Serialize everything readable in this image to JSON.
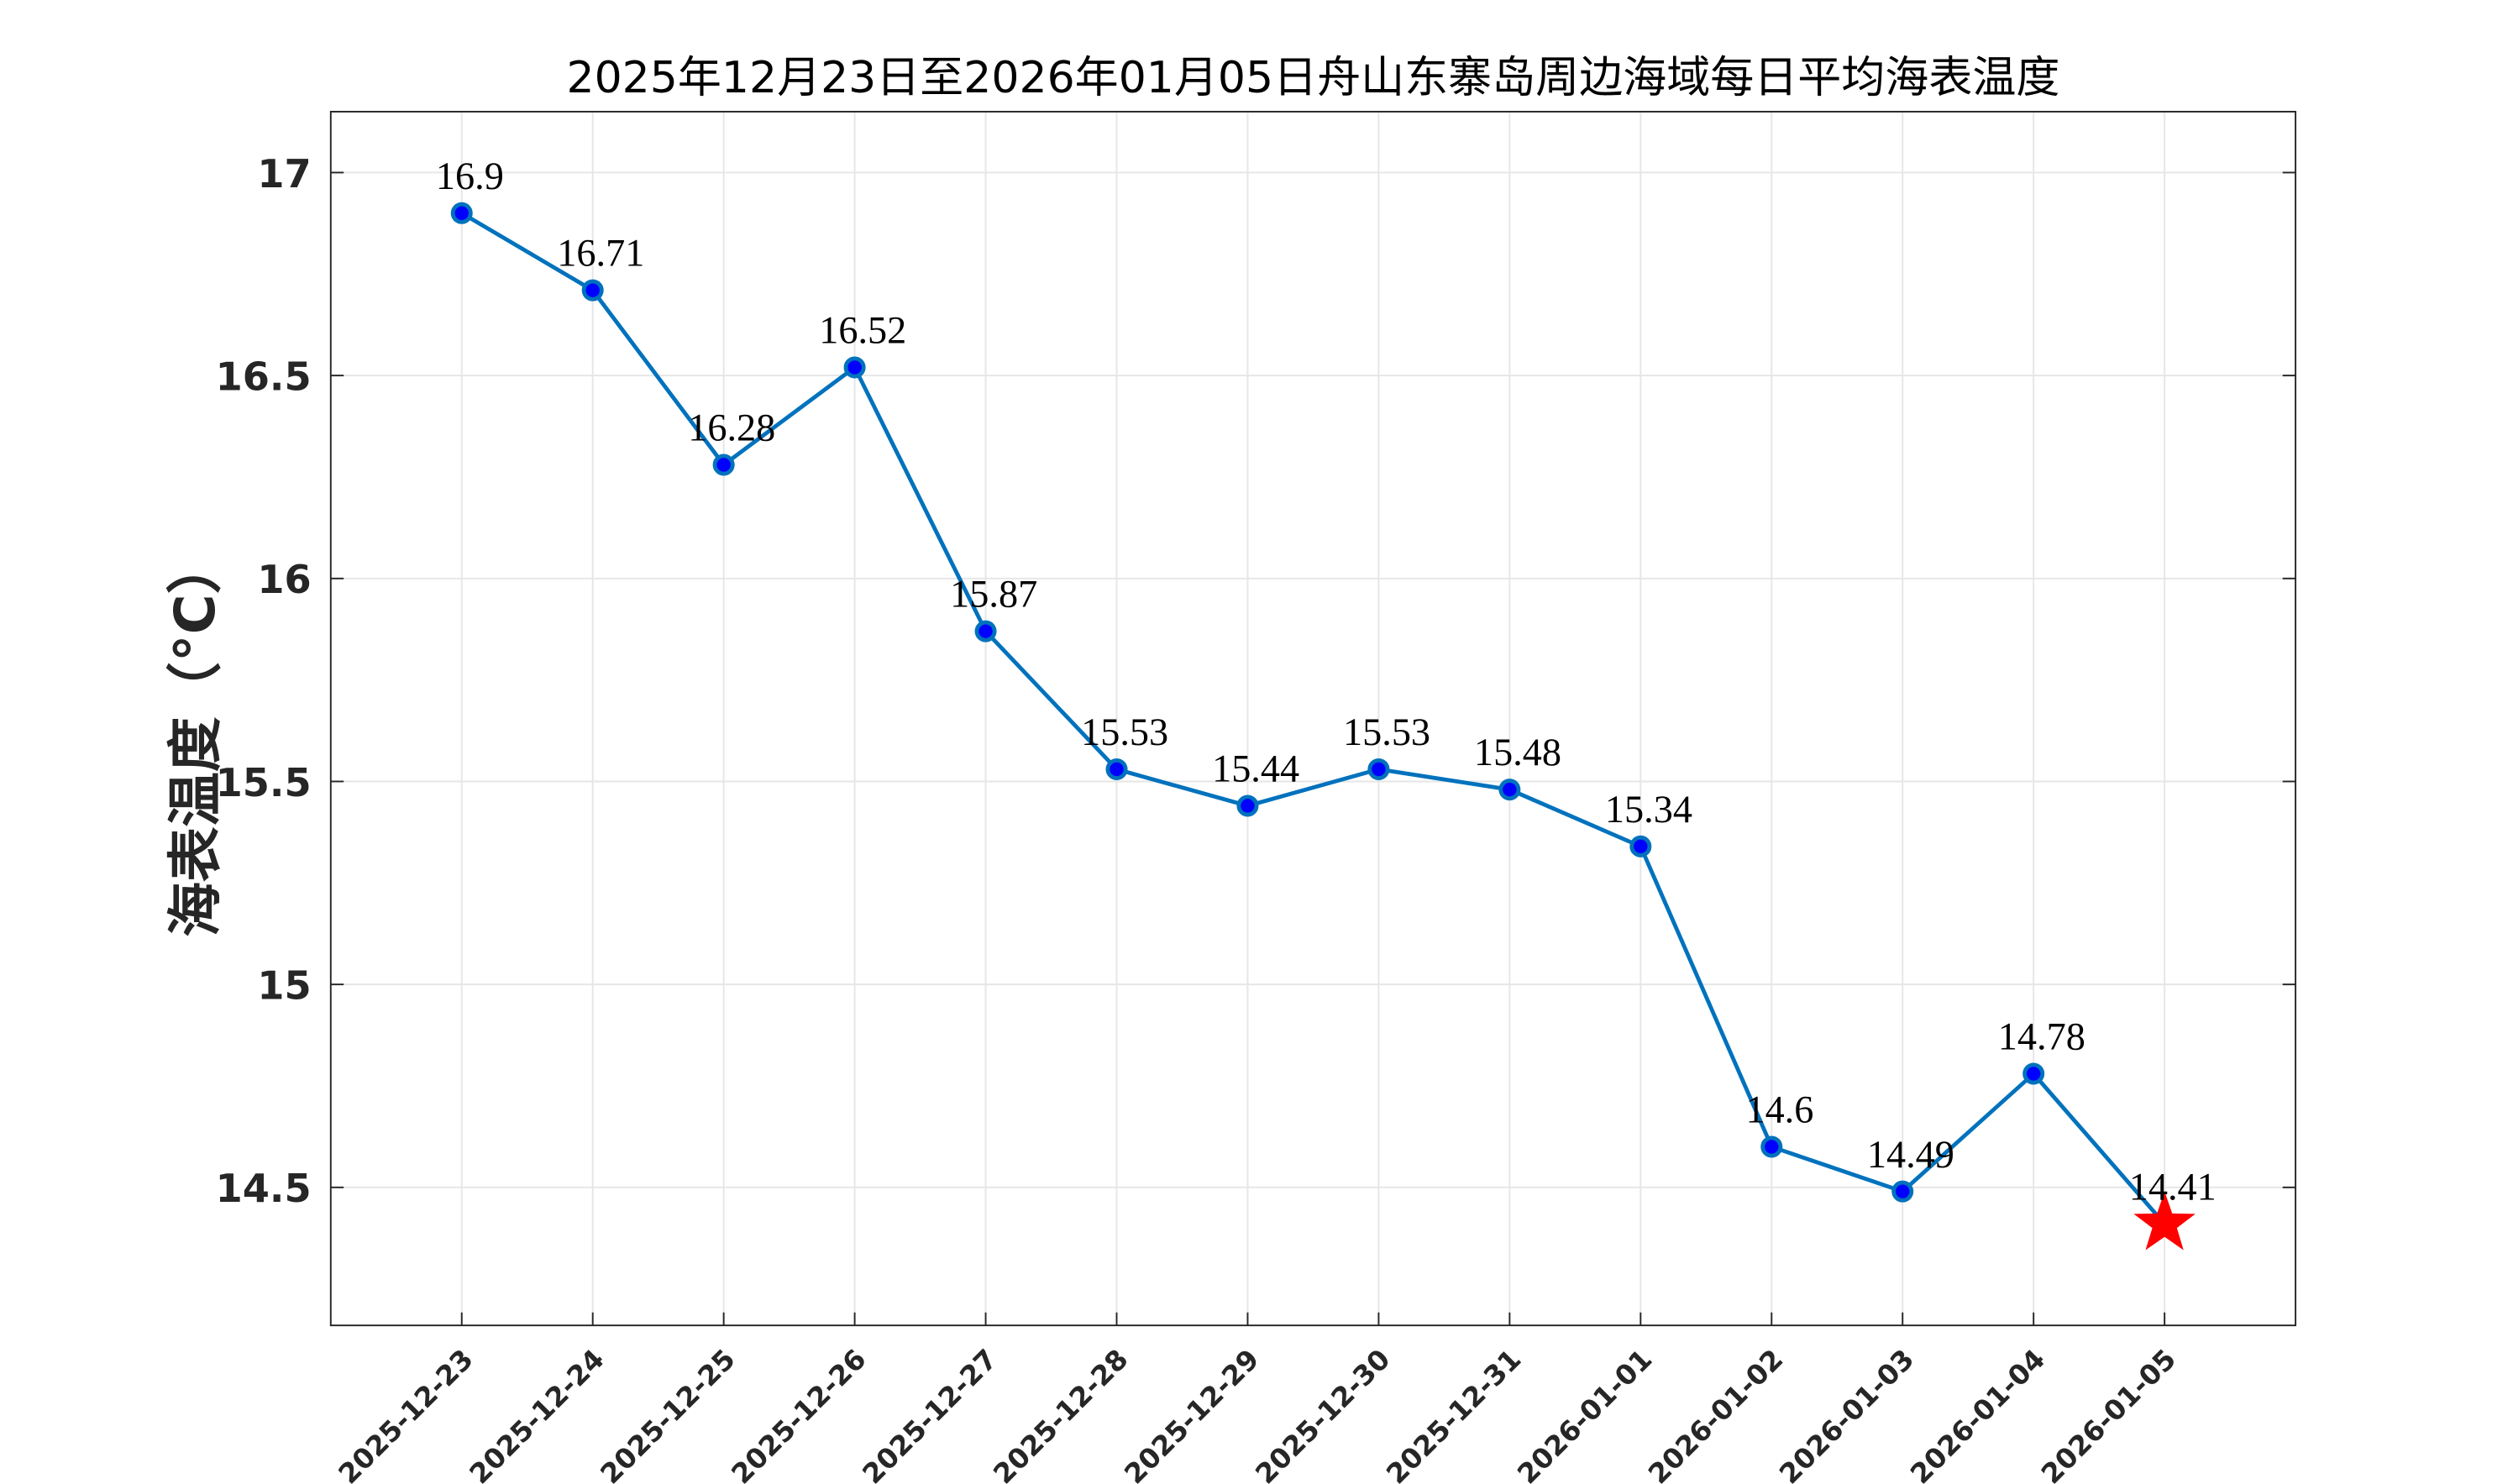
{
  "chart_data": {
    "type": "line",
    "title": "2025年12月23日至2026年01月05日舟山东寨岛周边海域每日平均海表温度",
    "xlabel": "",
    "ylabel": "海表温度（°C）",
    "categories": [
      "2025-12-23",
      "2025-12-24",
      "2025-12-25",
      "2025-12-26",
      "2025-12-27",
      "2025-12-28",
      "2025-12-29",
      "2025-12-30",
      "2025-12-31",
      "2026-01-01",
      "2026-01-02",
      "2026-01-03",
      "2026-01-04",
      "2026-01-05"
    ],
    "values": [
      16.9,
      16.71,
      16.28,
      16.52,
      15.87,
      15.53,
      15.44,
      15.53,
      15.48,
      15.34,
      14.6,
      14.49,
      14.78,
      14.41
    ],
    "data_labels": [
      "16.9",
      "16.71",
      "16.28",
      "16.52",
      "15.87",
      "15.53",
      "15.44",
      "15.53",
      "15.48",
      "15.34",
      "14.6",
      "14.49",
      "14.78",
      "14.41"
    ],
    "ylim": [
      14.16,
      17.15
    ],
    "yticks": [
      14.5,
      15,
      15.5,
      16,
      16.5,
      17
    ],
    "ytick_labels": [
      "14.5",
      "15",
      "15.5",
      "16",
      "16.5",
      "17"
    ],
    "grid": true,
    "line_color": "#0072BD",
    "marker_color": "#0000FF",
    "highlight_marker": {
      "index": 13,
      "shape": "star",
      "color": "#FF0000"
    }
  }
}
